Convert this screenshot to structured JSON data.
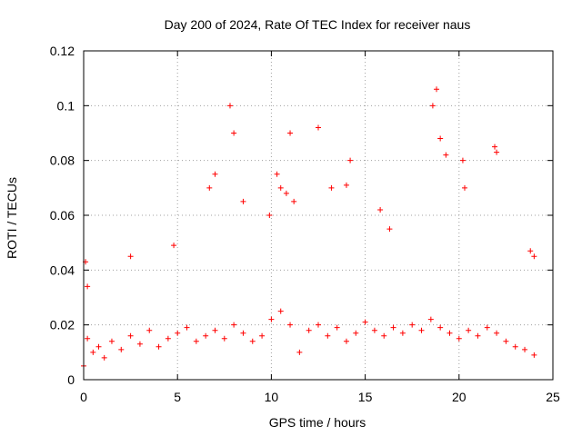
{
  "chart_data": {
    "type": "scatter",
    "title": "Day 200 of 2024, Rate Of TEC Index for receiver naus",
    "xlabel": "GPS time / hours",
    "ylabel": "ROTI / TECUs",
    "xlim": [
      0,
      25
    ],
    "ylim": [
      0,
      0.12
    ],
    "xticks": [
      "0",
      "5",
      "10",
      "15",
      "20",
      "25"
    ],
    "yticks": [
      "0",
      "0.02",
      "0.04",
      "0.06",
      "0.08",
      "0.1",
      "0.12"
    ],
    "grid": true,
    "marker": "+",
    "color": "#ff0000",
    "x": [
      0.0,
      0.2,
      0.5,
      0.8,
      1.1,
      1.5,
      2.0,
      2.5,
      3.0,
      3.5,
      4.0,
      4.5,
      5.0,
      5.5,
      6.0,
      6.5,
      7.0,
      7.5,
      8.0,
      8.5,
      9.0,
      9.5,
      10.0,
      10.5,
      11.0,
      11.5,
      12.0,
      12.5,
      13.0,
      13.5,
      14.0,
      14.5,
      15.0,
      15.5,
      16.0,
      16.5,
      17.0,
      17.5,
      18.0,
      18.5,
      19.0,
      19.5,
      20.0,
      20.5,
      21.0,
      21.5,
      22.0,
      22.5,
      23.0,
      23.5,
      24.0,
      0.1,
      0.2,
      2.5,
      4.8,
      6.7,
      7.0,
      7.8,
      8.0,
      8.5,
      9.9,
      10.3,
      10.5,
      10.8,
      11.0,
      11.2,
      12.5,
      13.2,
      14.0,
      14.2,
      15.8,
      16.3,
      18.6,
      18.8,
      19.0,
      19.3,
      20.2,
      20.3,
      21.9,
      22.0,
      23.8,
      24.0
    ],
    "y": [
      0.005,
      0.015,
      0.01,
      0.012,
      0.008,
      0.014,
      0.011,
      0.016,
      0.013,
      0.018,
      0.012,
      0.015,
      0.017,
      0.019,
      0.014,
      0.016,
      0.018,
      0.015,
      0.02,
      0.017,
      0.014,
      0.016,
      0.022,
      0.025,
      0.02,
      0.01,
      0.018,
      0.02,
      0.016,
      0.019,
      0.014,
      0.017,
      0.021,
      0.018,
      0.016,
      0.019,
      0.017,
      0.02,
      0.018,
      0.022,
      0.019,
      0.017,
      0.015,
      0.018,
      0.016,
      0.019,
      0.017,
      0.014,
      0.012,
      0.011,
      0.009,
      0.043,
      0.034,
      0.045,
      0.049,
      0.07,
      0.075,
      0.1,
      0.09,
      0.065,
      0.06,
      0.075,
      0.07,
      0.068,
      0.09,
      0.065,
      0.092,
      0.07,
      0.071,
      0.08,
      0.062,
      0.055,
      0.1,
      0.106,
      0.088,
      0.082,
      0.08,
      0.07,
      0.085,
      0.083,
      0.047,
      0.045
    ]
  }
}
